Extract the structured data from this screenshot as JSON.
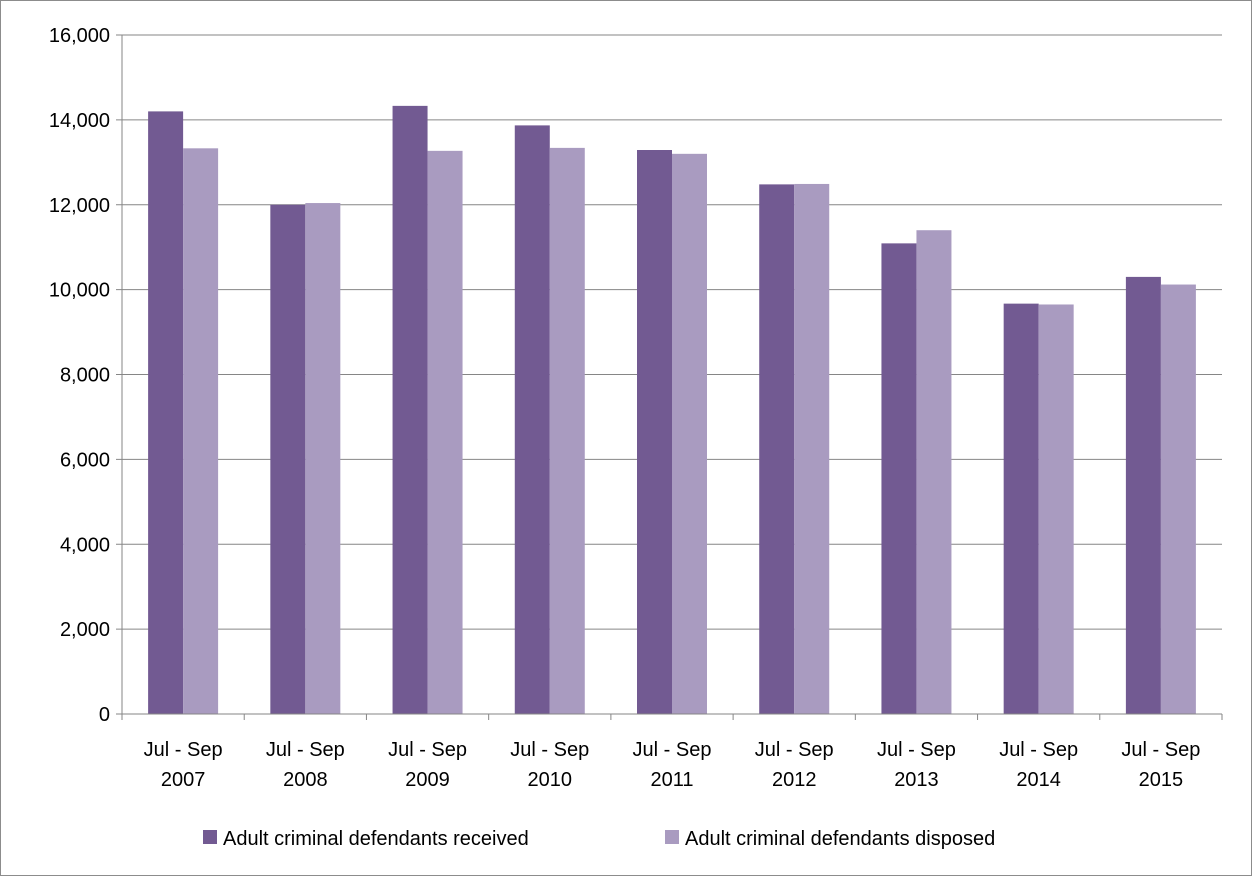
{
  "chart_data": {
    "type": "bar",
    "categories": [
      [
        "Jul - Sep",
        "2007"
      ],
      [
        "Jul - Sep",
        "2008"
      ],
      [
        "Jul - Sep",
        "2009"
      ],
      [
        "Jul - Sep",
        "2010"
      ],
      [
        "Jul - Sep",
        "2011"
      ],
      [
        "Jul - Sep",
        "2012"
      ],
      [
        "Jul - Sep",
        "2013"
      ],
      [
        "Jul - Sep",
        "2014"
      ],
      [
        "Jul - Sep",
        "2015"
      ]
    ],
    "series": [
      {
        "name": "Adult criminal defendants received",
        "color": "#725a92",
        "values": [
          14200,
          12000,
          14330,
          13870,
          13290,
          12480,
          11090,
          9670,
          10300
        ]
      },
      {
        "name": "Adult criminal defendants disposed",
        "color": "#a99bc0",
        "values": [
          13330,
          12040,
          13270,
          13340,
          13200,
          12490,
          11400,
          9650,
          10120
        ]
      }
    ],
    "ylim": [
      0,
      16000
    ],
    "yticks": [
      0,
      2000,
      4000,
      6000,
      8000,
      10000,
      12000,
      14000,
      16000
    ],
    "ytick_labels": [
      "0",
      "2,000",
      "4,000",
      "6,000",
      "8,000",
      "10,000",
      "12,000",
      "14,000",
      "16,000"
    ],
    "grid": true,
    "legend_position": "bottom",
    "title": "",
    "xlabel": "",
    "ylabel": ""
  }
}
